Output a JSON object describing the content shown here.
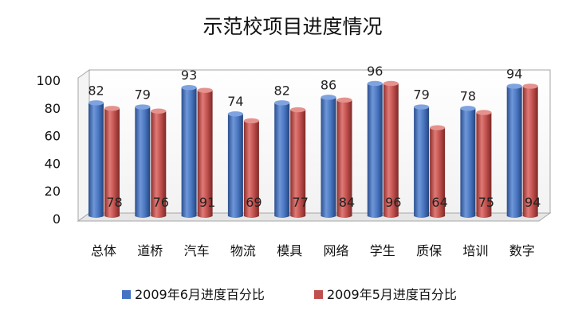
{
  "chart_data": {
    "type": "bar",
    "title": "示范校项目进度情况",
    "xlabel": "",
    "ylabel": "",
    "ylim": [
      0,
      100
    ],
    "yticks": [
      0,
      20,
      40,
      60,
      80,
      100
    ],
    "grid": false,
    "legend_position": "bottom",
    "categories": [
      "总体",
      "道桥",
      "汽车",
      "物流",
      "模具",
      "网络",
      "学生",
      "质保",
      "培训",
      "数字"
    ],
    "series": [
      {
        "name": "2009年6月进度百分比",
        "color": "#4472C4",
        "label_position": "above",
        "values": [
          82,
          79,
          93,
          74,
          82,
          86,
          96,
          79,
          78,
          94
        ]
      },
      {
        "name": "2009年5月进度百分比",
        "color": "#C0504D",
        "label_position": "inside-bottom",
        "values": [
          78,
          76,
          91,
          69,
          77,
          84,
          96,
          64,
          75,
          94
        ]
      }
    ]
  }
}
